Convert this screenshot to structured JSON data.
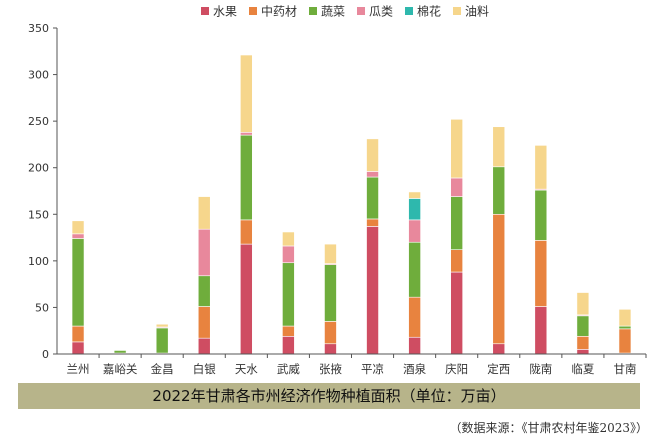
{
  "chart_data": {
    "type": "bar",
    "stacked": true,
    "title": "2022年甘肃各市州经济作物种植面积（单位：万亩）",
    "source": "（数据来源：《甘肃农村年鉴2023》）",
    "categories": [
      "兰州",
      "嘉峪关",
      "金昌",
      "白银",
      "天水",
      "武威",
      "张掖",
      "平凉",
      "酒泉",
      "庆阳",
      "定西",
      "陇南",
      "临夏",
      "甘南"
    ],
    "ylim": [
      0,
      350
    ],
    "yticks": [
      0,
      50,
      100,
      150,
      200,
      250,
      300,
      350
    ],
    "grid": false,
    "legend_position": "top",
    "series": [
      {
        "name": "水果",
        "color": "#cf4d62",
        "values": [
          13,
          0.5,
          0,
          17,
          118,
          19,
          11,
          137,
          18,
          88,
          11,
          51,
          5,
          1
        ]
      },
      {
        "name": "中药材",
        "color": "#e8833f",
        "values": [
          17,
          0.5,
          1,
          34,
          26,
          11,
          24,
          8,
          43,
          24,
          139,
          71,
          14,
          26
        ]
      },
      {
        "name": "蔬菜",
        "color": "#6fad3c",
        "values": [
          94,
          3,
          27,
          33,
          91,
          68,
          61,
          45,
          59,
          57,
          51,
          54,
          22,
          3
        ]
      },
      {
        "name": "瓜类",
        "color": "#e8889c",
        "values": [
          5,
          0,
          1,
          50,
          3,
          18,
          1,
          6,
          24,
          20,
          0,
          1,
          1,
          0
        ]
      },
      {
        "name": "棉花",
        "color": "#2eb8ad",
        "values": [
          0,
          0,
          0,
          0,
          0,
          0,
          0,
          0,
          23,
          0,
          0,
          0,
          0,
          0
        ]
      },
      {
        "name": "油料",
        "color": "#f6d68c",
        "values": [
          14,
          0.5,
          3,
          35,
          83,
          15,
          21,
          35,
          7,
          63,
          43,
          47,
          24,
          18
        ]
      }
    ]
  }
}
